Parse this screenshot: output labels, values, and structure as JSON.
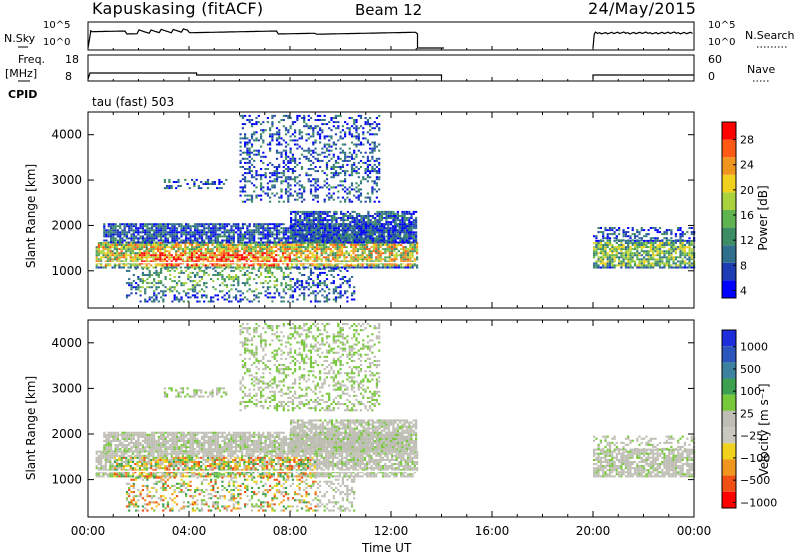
{
  "header": {
    "station": "Kapuskasing (fitACF)",
    "beam": "Beam 12",
    "date": "24/May/2015"
  },
  "aux": {
    "nsky_label": "N.Sky",
    "nsky_ticks": [
      "10^5",
      "10^0"
    ],
    "nsearch_label": "N.Search",
    "nsearch_ticks": [
      "10^5",
      "10^0"
    ],
    "freq_label": "Freq.",
    "freq_unit": "[MHz]",
    "freq_ticks": [
      "18",
      "8"
    ],
    "nave_label": "Nave",
    "nave_ticks": [
      "60",
      "0"
    ],
    "cpid_label": "CPID",
    "cpid_value": "tau (fast) 503"
  },
  "colors": {
    "power": [
      "#0000ff",
      "#1e3cb4",
      "#2f6e8c",
      "#3c8c64",
      "#5fb450",
      "#aad23c",
      "#f0d21e",
      "#f0961e",
      "#ff5a14",
      "#ff0000"
    ],
    "velocity": [
      "#1e2ddc",
      "#2d55be",
      "#3c82a0",
      "#3ca050",
      "#78c83c",
      "#bebeb4",
      "#c8c8be",
      "#f0d21e",
      "#f0961e",
      "#f05014",
      "#ff0000"
    ],
    "scatter_gray": "#b4b4aa"
  },
  "chart_data": [
    {
      "type": "heatmap",
      "name": "power",
      "ylabel": "Slant Range [km]",
      "ylim": [
        180,
        4500
      ],
      "yticks": [
        "4000",
        "3000",
        "2000",
        "1000"
      ],
      "ytick_values": [
        4000,
        3000,
        2000,
        1000
      ],
      "xlim": [
        0,
        24
      ],
      "colorbar_label": "Power [dB]",
      "colorbar_ticks": [
        "28",
        "24",
        "20",
        "16",
        "12",
        "8",
        "4"
      ]
    },
    {
      "type": "heatmap",
      "name": "velocity",
      "ylabel": "Slant Range [km]",
      "ylim": [
        180,
        4500
      ],
      "yticks": [
        "4000",
        "3000",
        "2000",
        "1000"
      ],
      "ytick_values": [
        4000,
        3000,
        2000,
        1000
      ],
      "xlim": [
        0,
        24
      ],
      "xlabel": "Time UT",
      "xticks": [
        "00:00",
        "04:00",
        "08:00",
        "12:00",
        "16:00",
        "20:00",
        "00:00"
      ],
      "xtick_values": [
        0,
        4,
        8,
        12,
        16,
        20,
        24
      ],
      "colorbar_label": "Velocity [m s⁻¹]",
      "colorbar_ticks": [
        "1000",
        "500",
        "100",
        "25",
        "−25",
        "−100",
        "−500",
        "−1000"
      ]
    }
  ]
}
